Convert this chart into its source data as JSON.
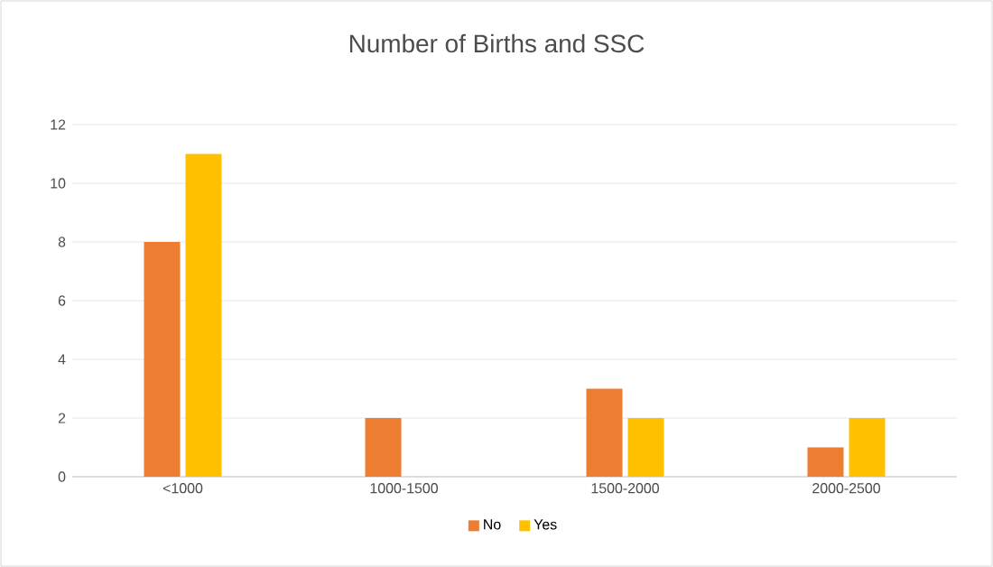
{
  "chart_data": {
    "type": "bar",
    "title": "Number of Births and SSC",
    "categories": [
      "<1000",
      "1000-1500",
      "1500-2000",
      "2000-2500"
    ],
    "series": [
      {
        "name": "No",
        "color": "#ed7d31",
        "values": [
          8,
          2,
          3,
          1
        ]
      },
      {
        "name": "Yes",
        "color": "#ffc000",
        "values": [
          11,
          0,
          2,
          2
        ]
      }
    ],
    "ylim": [
      0,
      12
    ],
    "yticks": [
      0,
      2,
      4,
      6,
      8,
      10,
      12
    ],
    "grid": "y",
    "legend": "bottom"
  }
}
